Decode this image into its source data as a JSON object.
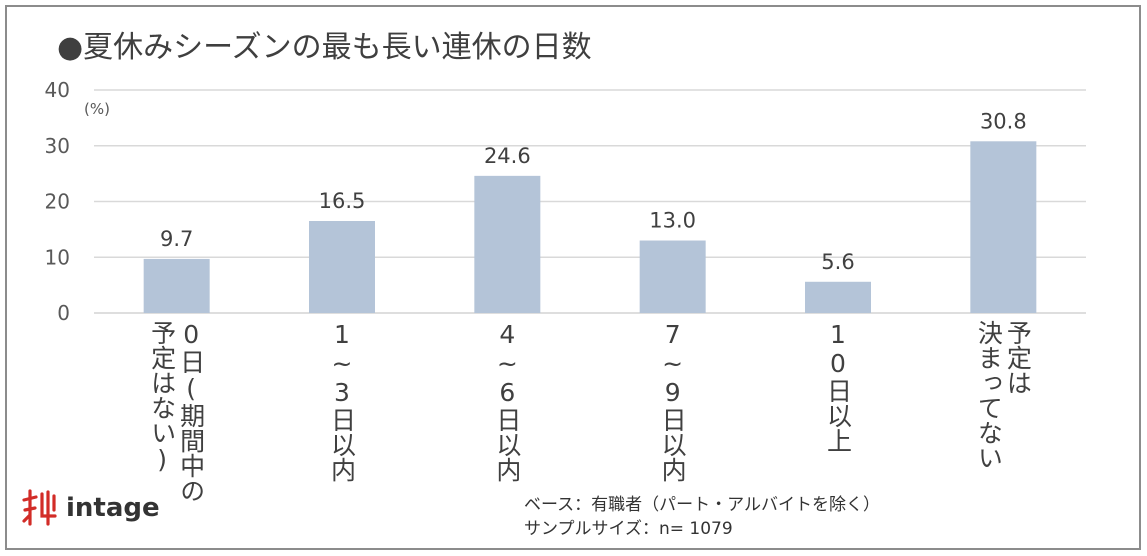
{
  "title": "●夏休みシーズンの最も長い連休の日数",
  "chart_data": {
    "type": "bar",
    "unit_label": "(%)",
    "categories": [
      "0日(期間中の\n予定はない)",
      "1〜3日以内",
      "4〜6日以内",
      "7〜9日以内",
      "10日以上",
      "予定は\n決まってない"
    ],
    "values": [
      9.7,
      16.5,
      24.6,
      13.0,
      5.6,
      30.8
    ],
    "value_labels": [
      "9.7",
      "16.5",
      "24.6",
      "13.0",
      "5.6",
      "30.8"
    ],
    "yticks": [
      "0",
      "10",
      "20",
      "30",
      "40"
    ],
    "ylim": [
      0,
      40
    ],
    "grid": true,
    "bar_color": "#b4c4d8",
    "grid_color": "#d9d9d9"
  },
  "category_columns": [
    [
      "0日(期間中の",
      "予定はない)"
    ],
    [
      "1~3日以内"
    ],
    [
      "4~6日以内"
    ],
    [
      "7~9日以内"
    ],
    [
      "10日以上"
    ],
    [
      "予定は",
      "決まってない"
    ]
  ],
  "logo": {
    "text": "intage",
    "icon": "intage-logo-icon",
    "color": "#d22c27"
  },
  "footnote": {
    "base": "ベース：有職者（パート・アルバイトを除く）",
    "sample": "サンプルサイズ：n= 1079"
  }
}
